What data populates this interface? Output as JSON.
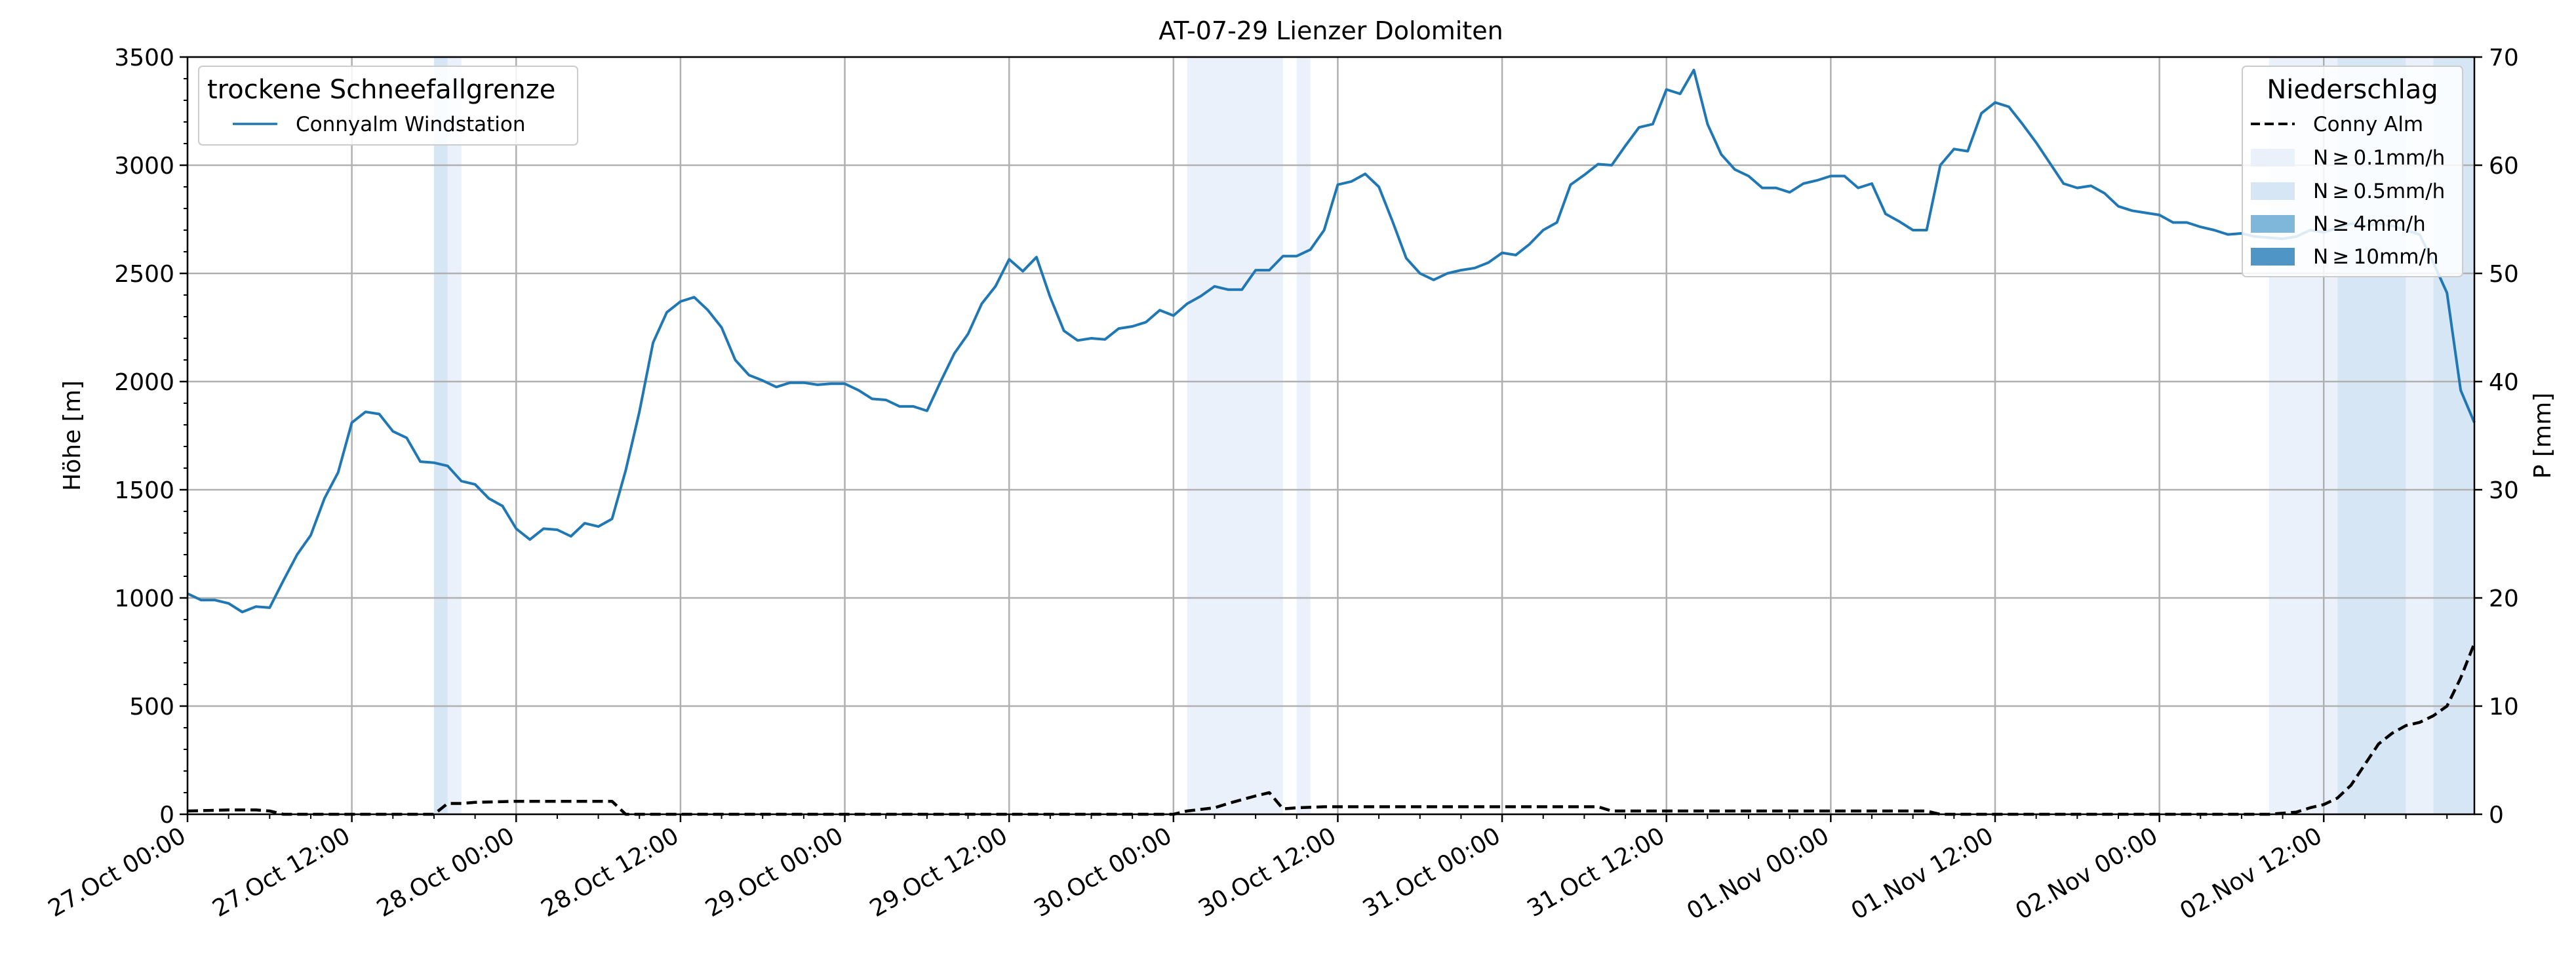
{
  "chart_data": {
    "type": "line",
    "title": "AT-07-29 Lienzer Dolomiten",
    "ylabel_left": "Höhe [m]",
    "ylabel_right": "P [mm]",
    "ylim_left": [
      0,
      3500
    ],
    "ylim_right": [
      0,
      70
    ],
    "yticks_left": [
      0,
      500,
      1000,
      1500,
      2000,
      2500,
      3000,
      3500
    ],
    "yticks_right": [
      0,
      10,
      20,
      30,
      40,
      50,
      60,
      70
    ],
    "xlim_hours": [
      0,
      167
    ],
    "grid": true,
    "x_tick_labels": [
      {
        "h": 0,
        "label": "27.Oct 00:00"
      },
      {
        "h": 12,
        "label": "27.Oct 12:00"
      },
      {
        "h": 24,
        "label": "28.Oct 00:00"
      },
      {
        "h": 36,
        "label": "28.Oct 12:00"
      },
      {
        "h": 48,
        "label": "29.Oct 00:00"
      },
      {
        "h": 60,
        "label": "29.Oct 12:00"
      },
      {
        "h": 72,
        "label": "30.Oct 00:00"
      },
      {
        "h": 84,
        "label": "30.Oct 12:00"
      },
      {
        "h": 96,
        "label": "31.Oct 00:00"
      },
      {
        "h": 108,
        "label": "31.Oct 12:00"
      },
      {
        "h": 120,
        "label": "01.Nov 00:00"
      },
      {
        "h": 132,
        "label": "01.Nov 12:00"
      },
      {
        "h": 144,
        "label": "02.Nov 00:00"
      },
      {
        "h": 156,
        "label": "02.Nov 12:00"
      }
    ],
    "snowline": {
      "name": "Connyalm Windstation",
      "color": "#1f77b4",
      "points": [
        [
          0,
          1020
        ],
        [
          1,
          990
        ],
        [
          2,
          990
        ],
        [
          3,
          975
        ],
        [
          4,
          935
        ],
        [
          5,
          960
        ],
        [
          6,
          955
        ],
        [
          7,
          1080
        ],
        [
          8,
          1200
        ],
        [
          9,
          1290
        ],
        [
          10,
          1460
        ],
        [
          11,
          1580
        ],
        [
          12,
          1810
        ],
        [
          13,
          1860
        ],
        [
          14,
          1850
        ],
        [
          15,
          1770
        ],
        [
          16,
          1740
        ],
        [
          17,
          1630
        ],
        [
          18,
          1625
        ],
        [
          19,
          1610
        ],
        [
          20,
          1540
        ],
        [
          21,
          1525
        ],
        [
          22,
          1460
        ],
        [
          23,
          1425
        ],
        [
          24,
          1320
        ],
        [
          25,
          1270
        ],
        [
          26,
          1320
        ],
        [
          27,
          1315
        ],
        [
          28,
          1285
        ],
        [
          29,
          1345
        ],
        [
          30,
          1330
        ],
        [
          31,
          1365
        ],
        [
          32,
          1590
        ],
        [
          33,
          1860
        ],
        [
          34,
          2180
        ],
        [
          35,
          2320
        ],
        [
          36,
          2370
        ],
        [
          37,
          2390
        ],
        [
          38,
          2330
        ],
        [
          39,
          2250
        ],
        [
          40,
          2100
        ],
        [
          41,
          2030
        ],
        [
          42,
          2005
        ],
        [
          43,
          1975
        ],
        [
          44,
          1995
        ],
        [
          45,
          1995
        ],
        [
          46,
          1985
        ],
        [
          47,
          1990
        ],
        [
          48,
          1990
        ],
        [
          49,
          1960
        ],
        [
          50,
          1920
        ],
        [
          51,
          1915
        ],
        [
          52,
          1885
        ],
        [
          53,
          1885
        ],
        [
          54,
          1865
        ],
        [
          55,
          2000
        ],
        [
          56,
          2130
        ],
        [
          57,
          2220
        ],
        [
          58,
          2360
        ],
        [
          59,
          2440
        ],
        [
          60,
          2565
        ],
        [
          61,
          2510
        ],
        [
          62,
          2575
        ],
        [
          63,
          2390
        ],
        [
          64,
          2235
        ],
        [
          65,
          2190
        ],
        [
          66,
          2200
        ],
        [
          67,
          2195
        ],
        [
          68,
          2245
        ],
        [
          69,
          2255
        ],
        [
          70,
          2275
        ],
        [
          71,
          2330
        ],
        [
          72,
          2305
        ],
        [
          73,
          2360
        ],
        [
          74,
          2395
        ],
        [
          75,
          2440
        ],
        [
          76,
          2425
        ],
        [
          77,
          2425
        ],
        [
          78,
          2515
        ],
        [
          79,
          2515
        ],
        [
          80,
          2580
        ],
        [
          81,
          2580
        ],
        [
          82,
          2610
        ],
        [
          83,
          2700
        ],
        [
          84,
          2910
        ],
        [
          85,
          2925
        ],
        [
          86,
          2960
        ],
        [
          87,
          2900
        ],
        [
          88,
          2740
        ],
        [
          89,
          2570
        ],
        [
          90,
          2500
        ],
        [
          91,
          2470
        ],
        [
          92,
          2500
        ],
        [
          93,
          2515
        ],
        [
          94,
          2525
        ],
        [
          95,
          2550
        ],
        [
          96,
          2595
        ],
        [
          97,
          2585
        ],
        [
          98,
          2635
        ],
        [
          99,
          2700
        ],
        [
          100,
          2735
        ],
        [
          101,
          2910
        ],
        [
          102,
          2955
        ],
        [
          103,
          3005
        ],
        [
          104,
          3000
        ],
        [
          105,
          3090
        ],
        [
          106,
          3175
        ],
        [
          107,
          3190
        ],
        [
          108,
          3350
        ],
        [
          109,
          3330
        ],
        [
          110,
          3440
        ],
        [
          111,
          3190
        ],
        [
          112,
          3050
        ],
        [
          113,
          2980
        ],
        [
          114,
          2950
        ],
        [
          115,
          2895
        ],
        [
          116,
          2895
        ],
        [
          117,
          2875
        ],
        [
          118,
          2915
        ],
        [
          119,
          2930
        ],
        [
          120,
          2950
        ],
        [
          121,
          2950
        ],
        [
          122,
          2895
        ],
        [
          123,
          2915
        ],
        [
          124,
          2775
        ],
        [
          125,
          2740
        ],
        [
          126,
          2700
        ],
        [
          127,
          2700
        ],
        [
          128,
          3000
        ],
        [
          129,
          3075
        ],
        [
          130,
          3065
        ],
        [
          131,
          3240
        ],
        [
          132,
          3290
        ],
        [
          133,
          3270
        ],
        [
          134,
          3190
        ],
        [
          135,
          3105
        ],
        [
          136,
          3010
        ],
        [
          137,
          2915
        ],
        [
          138,
          2895
        ],
        [
          139,
          2905
        ],
        [
          140,
          2870
        ],
        [
          141,
          2810
        ],
        [
          142,
          2790
        ],
        [
          143,
          2780
        ],
        [
          144,
          2770
        ],
        [
          145,
          2735
        ],
        [
          146,
          2735
        ],
        [
          147,
          2715
        ],
        [
          148,
          2700
        ],
        [
          149,
          2680
        ],
        [
          150,
          2685
        ],
        [
          151,
          2670
        ],
        [
          152,
          2665
        ],
        [
          153,
          2660
        ],
        [
          154,
          2670
        ],
        [
          155,
          2700
        ],
        [
          156,
          2690
        ],
        [
          157,
          2710
        ],
        [
          158,
          2730
        ],
        [
          159,
          2720
        ],
        [
          160,
          2730
        ],
        [
          161,
          2720
        ],
        [
          162,
          2700
        ],
        [
          163,
          2680
        ],
        [
          164,
          2550
        ],
        [
          165,
          2410
        ],
        [
          166,
          1960
        ],
        [
          167,
          1810
        ]
      ]
    },
    "precipitation": {
      "name": "Conny Alm",
      "style": "dashed",
      "color": "#000000",
      "points": [
        [
          0,
          0.3
        ],
        [
          3,
          0.4
        ],
        [
          5,
          0.4
        ],
        [
          6,
          0.3
        ],
        [
          7,
          0
        ],
        [
          18,
          0
        ],
        [
          19,
          1
        ],
        [
          20,
          1
        ],
        [
          21,
          1.1
        ],
        [
          24,
          1.2
        ],
        [
          31,
          1.2
        ],
        [
          32,
          0
        ],
        [
          72,
          0
        ],
        [
          73,
          0.3
        ],
        [
          75,
          0.6
        ],
        [
          76,
          1.0
        ],
        [
          78,
          1.7
        ],
        [
          79,
          2.0
        ],
        [
          80,
          0.5
        ],
        [
          81,
          0.6
        ],
        [
          83,
          0.7
        ],
        [
          86,
          0.7
        ],
        [
          103,
          0.7
        ],
        [
          104,
          0.3
        ],
        [
          120,
          0.3
        ],
        [
          127,
          0.3
        ],
        [
          128,
          0
        ],
        [
          152,
          0
        ],
        [
          154,
          0.2
        ],
        [
          155,
          0.6
        ],
        [
          156,
          0.9
        ],
        [
          157,
          1.5
        ],
        [
          158,
          2.7
        ],
        [
          159,
          4.6
        ],
        [
          160,
          6.5
        ],
        [
          161,
          7.5
        ],
        [
          162,
          8.2
        ],
        [
          163,
          8.5
        ],
        [
          164,
          9.1
        ],
        [
          165,
          10.0
        ],
        [
          166,
          12.6
        ],
        [
          167,
          15.8
        ]
      ]
    },
    "precipitation_bands": [
      {
        "start": 18.0,
        "end": 19.0,
        "class": 1
      },
      {
        "start": 19.0,
        "end": 20.0,
        "class": 0
      },
      {
        "start": 73.0,
        "end": 80.0,
        "class": 0
      },
      {
        "start": 81.0,
        "end": 82.0,
        "class": 0
      },
      {
        "start": 152.0,
        "end": 157.0,
        "class": 0
      },
      {
        "start": 157.0,
        "end": 162.0,
        "class": 1
      },
      {
        "start": 162.0,
        "end": 164.0,
        "class": 0
      },
      {
        "start": 164.0,
        "end": 167.0,
        "class": 1
      }
    ],
    "band_colors": [
      "#eaf1fa",
      "#d6e6f4",
      "#7fb7da",
      "#4f95c6"
    ],
    "legend_left": {
      "title": "trockene Schneefallgrenze",
      "entries": [
        "Connyalm Windstation"
      ],
      "placement": "top-left"
    },
    "legend_right": {
      "title": "Niederschlag",
      "entries": [
        "Conny Alm",
        "N ≥ 0.1mm/h",
        "N ≥ 0.5mm/h",
        "N ≥ 4mm/h",
        "N ≥ 10mm/h"
      ],
      "placement": "top-right"
    }
  }
}
